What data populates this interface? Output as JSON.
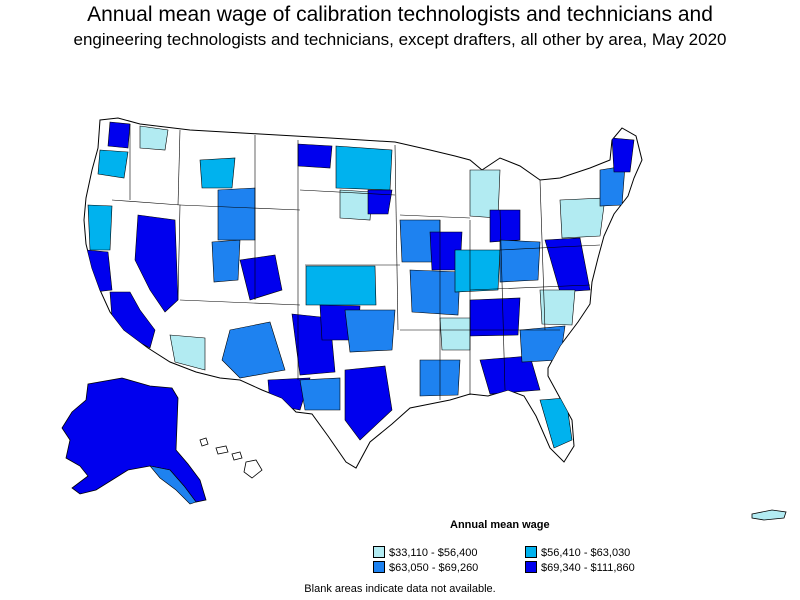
{
  "title": {
    "line1": "Annual mean wage of calibration technologists and technicians and",
    "line2": "engineering technologists and technicians, except drafters, all other by area, May 2020"
  },
  "legend": {
    "title": "Annual mean wage",
    "items": [
      {
        "label": "$33,110 - $56,400",
        "color": "#b2ebf2"
      },
      {
        "label": "$56,410 - $63,030",
        "color": "#00b2ee"
      },
      {
        "label": "$63,050 - $69,260",
        "color": "#1e82f0"
      },
      {
        "label": "$69,340 - $111,860",
        "color": "#0000ee"
      }
    ]
  },
  "footnote": "Blank areas indicate data not available.",
  "colors": {
    "no_data": "#ffffff",
    "border": "#000000"
  }
}
